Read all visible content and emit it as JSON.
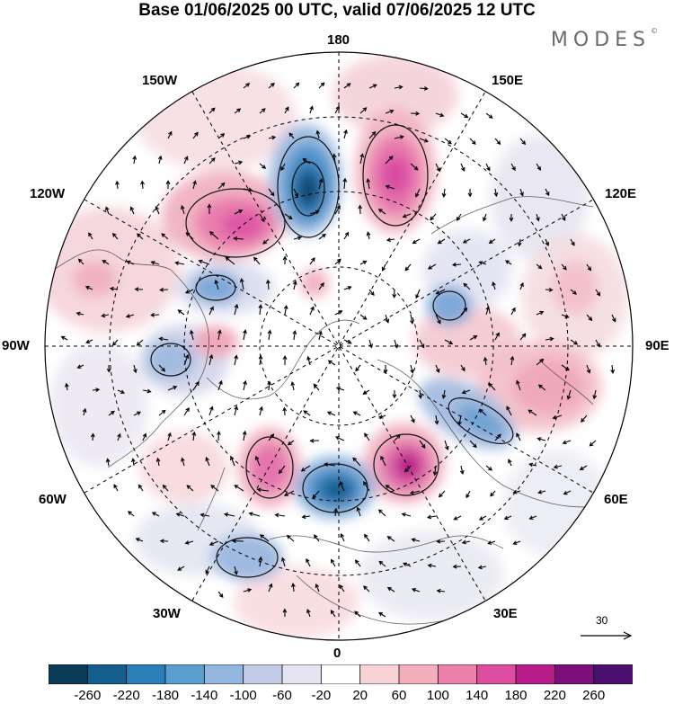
{
  "title": "Base 01/06/2025 00 UTC, valid 07/06/2025 12 UTC",
  "brand": "MODES",
  "brand_mark": "©",
  "longitude_labels": {
    "top": "180",
    "bottom": "0",
    "left": "90W",
    "right": "90E",
    "upper_left": "150W",
    "upper_right": "150E",
    "left_upper": "120W",
    "right_upper": "120E",
    "left_lower": "60W",
    "right_lower": "60E",
    "lower_left": "30W",
    "lower_right": "30E"
  },
  "reference_vector": {
    "label": "30"
  },
  "colorbar": {
    "tick_labels": [
      "-260",
      "-220",
      "-180",
      "-140",
      "-100",
      "-60",
      "-20",
      "20",
      "60",
      "100",
      "140",
      "180",
      "220",
      "260"
    ],
    "colors": [
      "#0d3b5a",
      "#135e8d",
      "#2a7fb8",
      "#5b9fd0",
      "#93b6de",
      "#c3cbe6",
      "#e5e4f1",
      "#ffffff",
      "#f7d3d8",
      "#f3afbc",
      "#ec82ab",
      "#dd4ea0",
      "#b81e8a",
      "#7d0f7a",
      "#4b0f70"
    ]
  }
}
